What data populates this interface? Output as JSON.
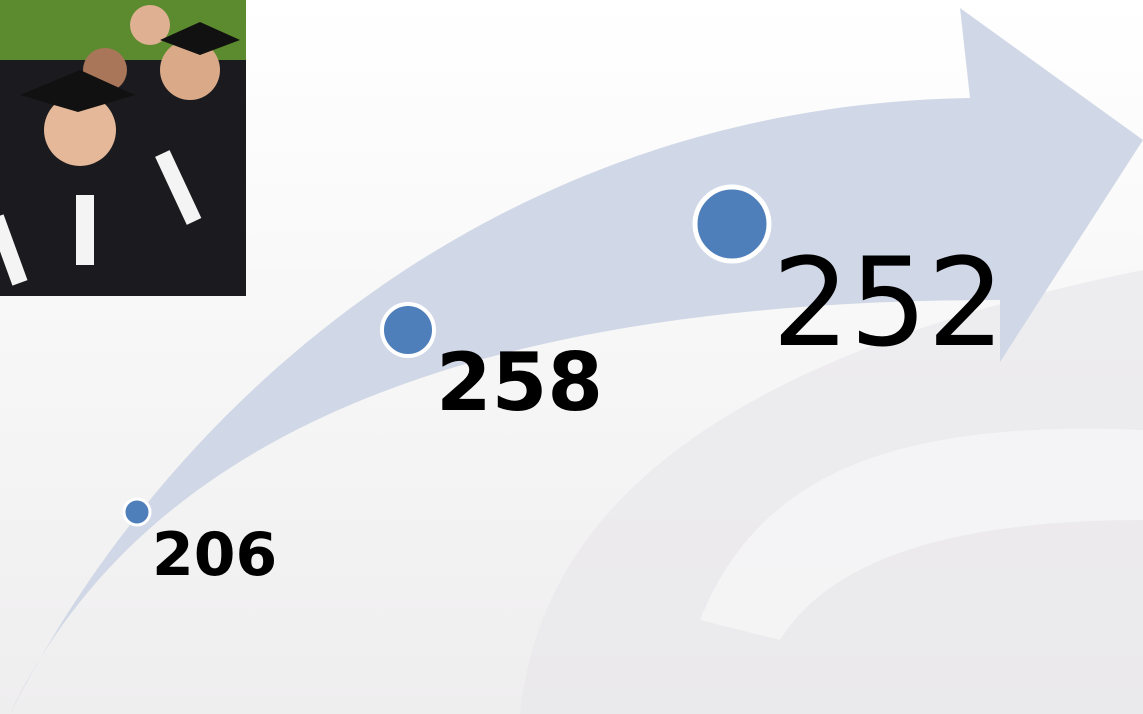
{
  "points": [
    {
      "label": 206
    },
    {
      "label": 258
    },
    {
      "label": 252
    }
  ]
}
